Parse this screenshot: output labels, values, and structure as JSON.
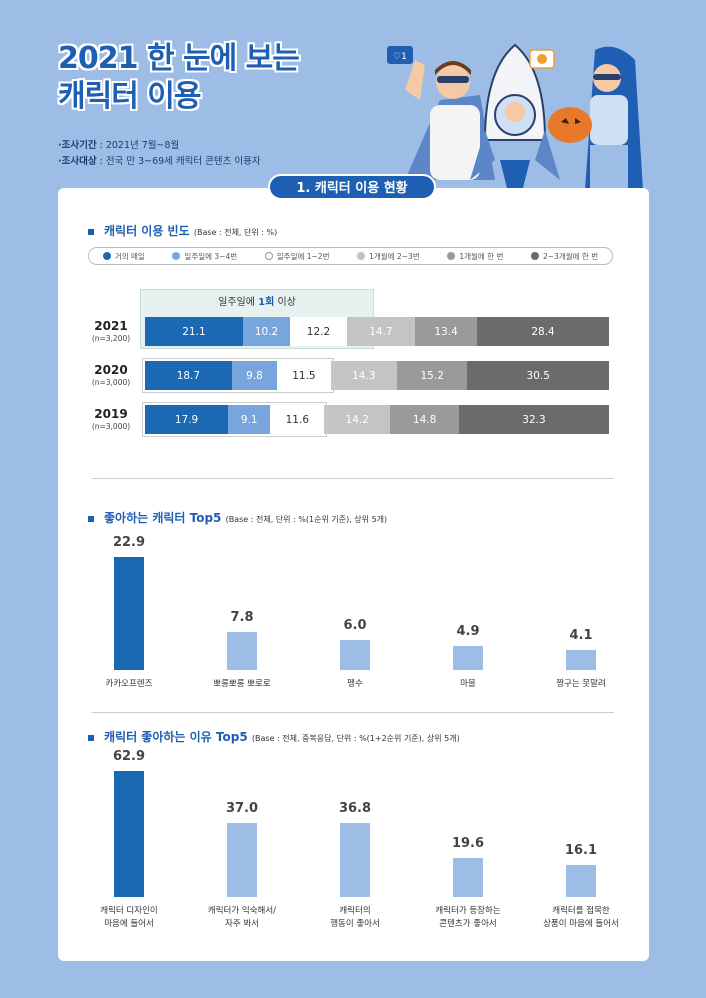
{
  "title": {
    "line1": "2021 한 눈에 보는",
    "line2": "캐릭터 이용"
  },
  "meta": {
    "period_label": "·조사기간",
    "period_value": " : 2021년 7월~8월",
    "target_label": "·조사대상",
    "target_value": " : 전국 만 3~69세 캐릭터 콘텐츠 이용자"
  },
  "section_title": "1. 캐릭터 이용 현황",
  "colors": {
    "primary": "#1f5fb3",
    "blue_light": "#78a5dc",
    "bar_dark": "#1b68b3",
    "bar_light": "#9dbde6"
  },
  "chart_data": [
    {
      "type": "bar",
      "orientation": "horizontal-stacked",
      "title": "캐릭터 이용 빈도",
      "base": "(Base : 전체, 단위 : %)",
      "highlight": {
        "pre": "일주일에 ",
        "bold": "1회",
        "post": " 이상"
      },
      "legend": [
        "거의 매일",
        "일주일에 3~4번",
        "일주일에 1~2번",
        "1개월에 2~3번",
        "1개월에 한 번",
        "2~3개월에 한 번"
      ],
      "legend_colors": [
        "#1b68b3",
        "#78a5dc",
        "#ffffff",
        "#c4c4c4",
        "#9a9a9a",
        "#6b6b6b"
      ],
      "rows": [
        {
          "year": "2021",
          "n": "(n=3,200)",
          "values": [
            21.1,
            10.2,
            12.2,
            14.7,
            13.4,
            28.4
          ]
        },
        {
          "year": "2020",
          "n": "(n=3,000)",
          "values": [
            18.7,
            9.8,
            11.5,
            14.3,
            15.2,
            30.5
          ]
        },
        {
          "year": "2019",
          "n": "(n=3,000)",
          "values": [
            17.9,
            9.1,
            11.6,
            14.2,
            14.8,
            32.3
          ]
        }
      ],
      "xlim": [
        0,
        100
      ]
    },
    {
      "type": "bar",
      "title": "좋아하는 캐릭터 Top5",
      "base": "(Base : 전체, 단위 : %(1순위 기준), 상위 5개)",
      "categories": [
        "카카오프렌즈",
        "뽀롱뽀롱 뽀로로",
        "펭수",
        "마블",
        "짱구는 못말려"
      ],
      "values": [
        22.9,
        7.8,
        6.0,
        4.9,
        4.1
      ],
      "labels": [
        "22.9",
        "7.8",
        "6.0",
        "4.9",
        "4.1"
      ]
    },
    {
      "type": "bar",
      "title": "캐릭터 좋아하는 이유 Top5",
      "base": "(Base : 전체, 중복응답, 단위 : %(1+2순위 기준), 상위 5개)",
      "categories": [
        "캐릭터 디자인이\n마음에 들어서",
        "캐릭터가 익숙해서/\n자주 봐서",
        "캐릭터의\n행동이 좋아서",
        "캐릭터가 등장하는\n콘텐츠가 좋아서",
        "캐릭터를 접목한\n상품이 마음에 들어서"
      ],
      "values": [
        62.9,
        37.0,
        36.8,
        19.6,
        16.1
      ],
      "labels": [
        "62.9",
        "37.0",
        "36.8",
        "19.6",
        "16.1"
      ]
    }
  ]
}
